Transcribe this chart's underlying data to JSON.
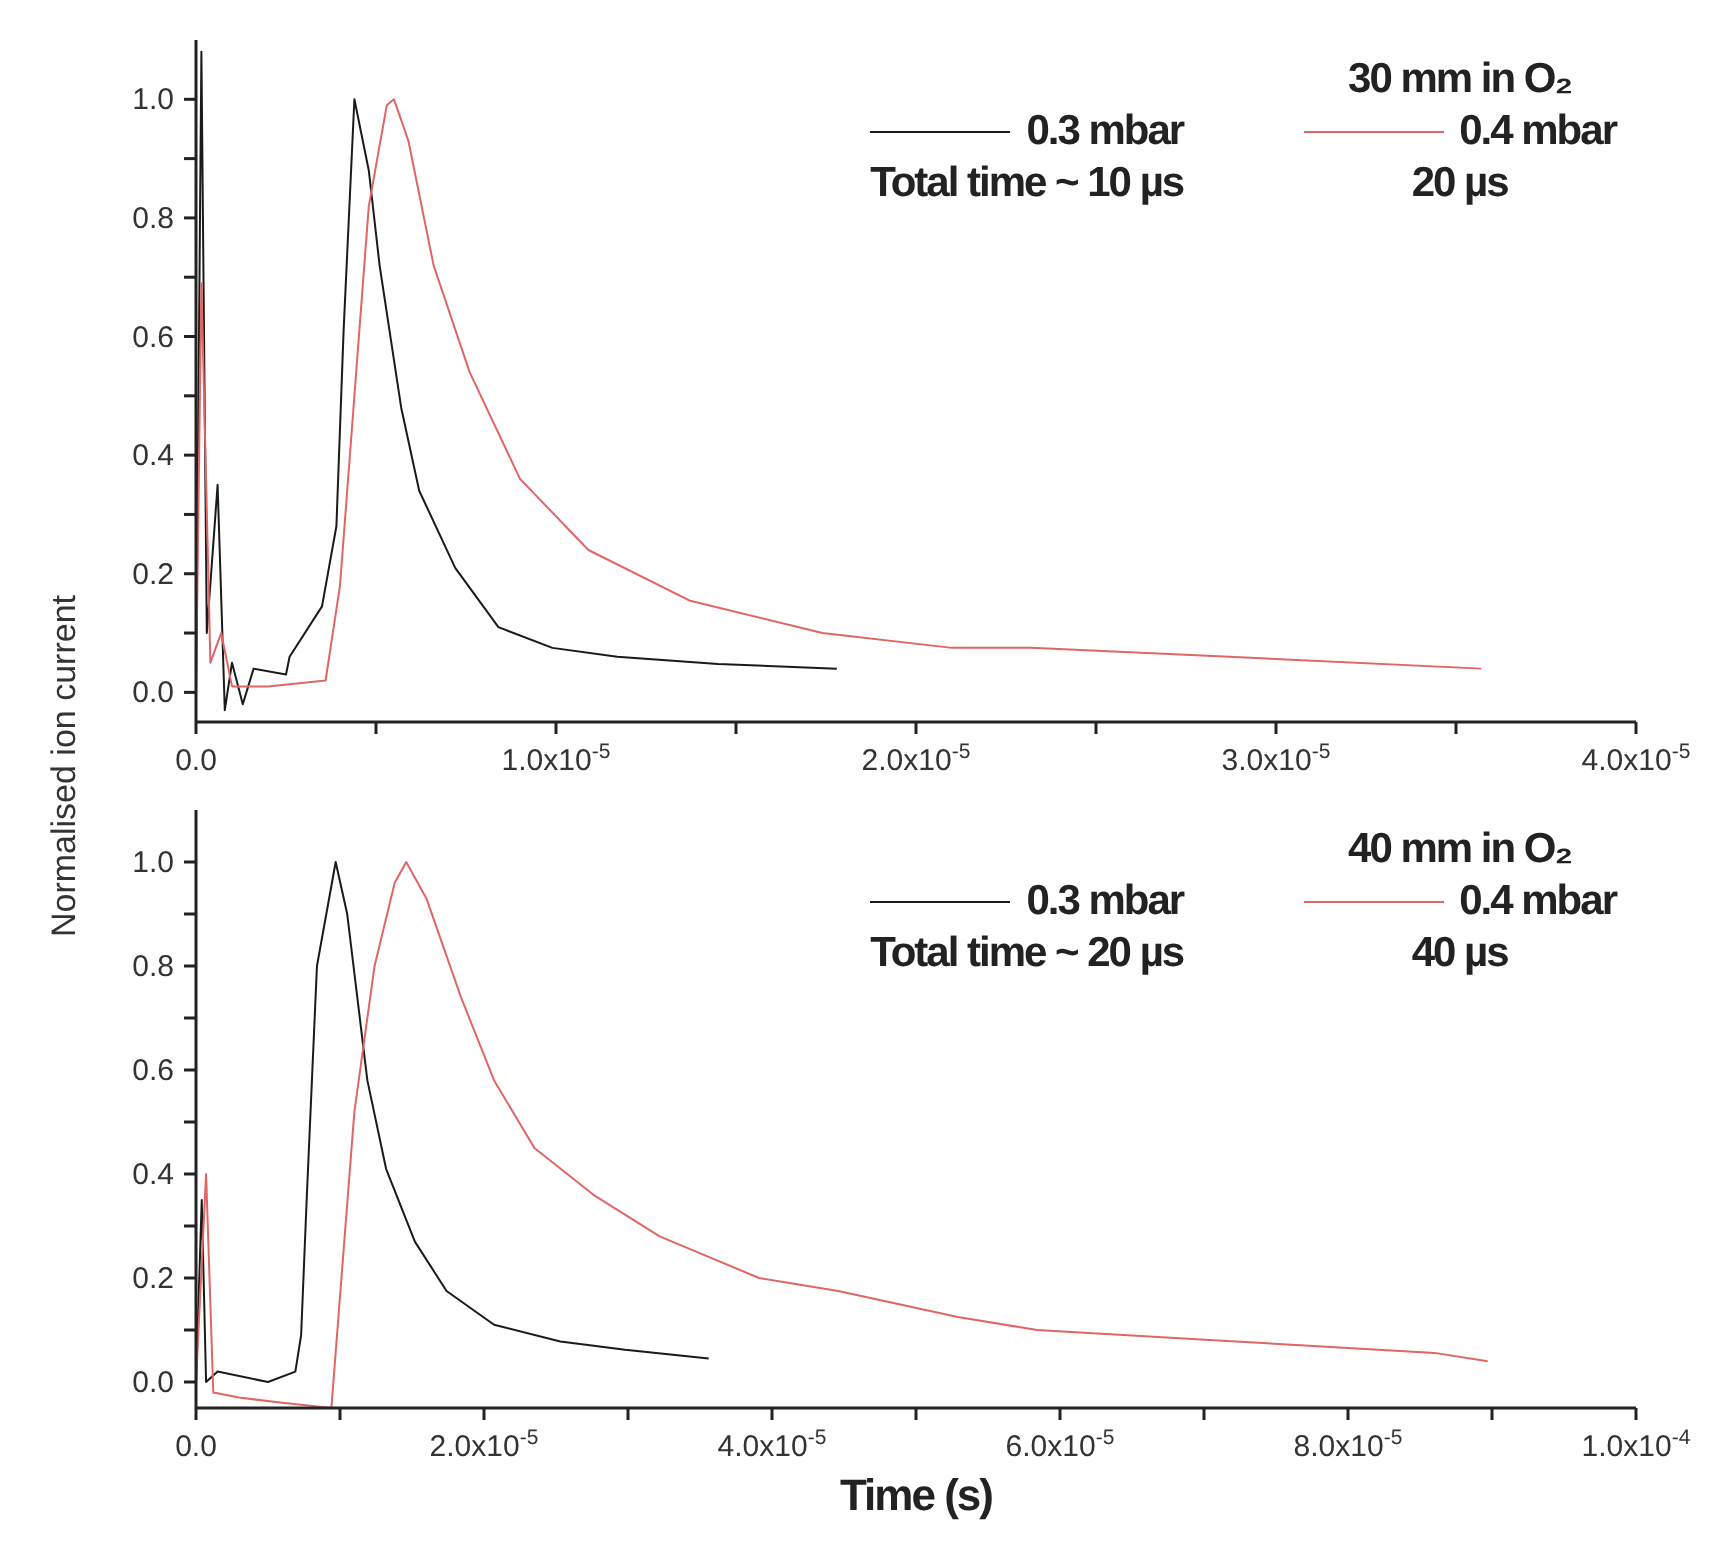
{
  "chart_data": [
    {
      "type": "line",
      "annotations": [
        "30 mm in O₂",
        "Total time ~ 10 µs",
        "20 µs"
      ],
      "legend": "top right",
      "xlim": [
        0,
        4e-05
      ],
      "xticks": [
        {
          "value": 0,
          "label": "0.0"
        },
        {
          "value": 5e-06,
          "label": null
        },
        {
          "value": 1e-05,
          "label": "1.0x10$^{-5}$"
        },
        {
          "value": 1.5e-05,
          "label": null
        },
        {
          "value": 2e-05,
          "label": "2.0x10$^{-5}$"
        },
        {
          "value": 2.5e-05,
          "label": null
        },
        {
          "value": 3e-05,
          "label": "3.0x10$^{-5}$"
        },
        {
          "value": 3.5e-05,
          "label": null
        },
        {
          "value": 4e-05,
          "label": "4.0x10$^{-5}$"
        }
      ],
      "ylim": [
        -0.05,
        1.1
      ],
      "yticks": [
        {
          "value": 0,
          "label": "0.0"
        },
        {
          "value": 0.1,
          "label": null
        },
        0.2,
        {
          "value": 0.3,
          "label": null
        },
        0.4,
        {
          "value": 0.5,
          "label": null
        },
        0.6,
        {
          "value": 0.7,
          "label": null
        },
        0.8,
        {
          "value": 0.9,
          "label": null
        },
        {
          "value": 1,
          "label": "1.0"
        }
      ],
      "series": [
        {
          "name": "0.3 mbar",
          "color": "#1a1a1a",
          "x": [
            0,
            1.5e-07,
            3e-07,
            6e-07,
            8e-07,
            1e-06,
            1.3e-06,
            1.6e-06,
            2.5e-06,
            2.6e-06,
            3.5e-06,
            3.9e-06,
            4.1e-06,
            4.4e-06,
            4.8e-06,
            5.1e-06,
            5.7e-06,
            6.2e-06,
            7.2e-06,
            8.4e-06,
            9.9e-06,
            1.17e-05,
            1.45e-05,
            1.78e-05
          ],
          "values": [
            0,
            1.08,
            0.1,
            0.35,
            -0.03,
            0.05,
            -0.02,
            0.04,
            0.03,
            0.06,
            0.145,
            0.28,
            0.61,
            1.0,
            0.88,
            0.72,
            0.48,
            0.34,
            0.21,
            0.11,
            0.075,
            0.06,
            0.048,
            0.04
          ]
        },
        {
          "name": "0.4 mbar",
          "color": "#e06666",
          "x": [
            0,
            1.5e-07,
            4e-07,
            7e-07,
            1e-06,
            2e-06,
            3.6e-06,
            4e-06,
            4.4e-06,
            4.8e-06,
            5.3e-06,
            5.5e-06,
            5.9e-06,
            6.6e-06,
            7.6e-06,
            9e-06,
            1.09e-05,
            1.37e-05,
            1.74e-05,
            2.1e-05,
            2.32e-05,
            2.87e-05,
            3.57e-05
          ],
          "values": [
            0,
            0.69,
            0.05,
            0.1,
            0.01,
            0.01,
            0.02,
            0.18,
            0.5,
            0.82,
            0.99,
            1.0,
            0.93,
            0.72,
            0.54,
            0.36,
            0.24,
            0.155,
            0.1,
            0.075,
            0.075,
            0.06,
            0.04
          ]
        }
      ]
    },
    {
      "type": "line",
      "annotations": [
        "40 mm in O₂",
        "Total time ~ 20 µs",
        "40 µs"
      ],
      "legend": "top right",
      "xlabel": "Time (s)",
      "ylabel": "Normalised ion current",
      "xlim": [
        0,
        0.0001
      ],
      "xticks": [
        {
          "value": 0,
          "label": "0.0"
        },
        {
          "value": 1e-05,
          "label": null
        },
        {
          "value": 2e-05,
          "label": "2.0x10$^{-5}$"
        },
        {
          "value": 3e-05,
          "label": null
        },
        {
          "value": 4e-05,
          "label": "4.0x10$^{-5}$"
        },
        {
          "value": 5e-05,
          "label": null
        },
        {
          "value": 6e-05,
          "label": "6.0x10$^{-5}$"
        },
        {
          "value": 7e-05,
          "label": null
        },
        {
          "value": 8e-05,
          "label": "8.0x10$^{-5}$"
        },
        {
          "value": 9e-05,
          "label": null
        },
        {
          "value": 0.0001,
          "label": "1.0x10$^{-4}$"
        }
      ],
      "ylim": [
        -0.05,
        1.1
      ],
      "yticks": [
        {
          "value": 0,
          "label": "0.0"
        },
        {
          "value": 0.1,
          "label": null
        },
        0.2,
        {
          "value": 0.3,
          "label": null
        },
        0.4,
        {
          "value": 0.5,
          "label": null
        },
        0.6,
        {
          "value": 0.7,
          "label": null
        },
        0.8,
        {
          "value": 0.9,
          "label": null
        },
        {
          "value": 1,
          "label": "1.0"
        }
      ],
      "series": [
        {
          "name": "0.3 mbar",
          "color": "#1a1a1a",
          "x": [
            0,
            4e-07,
            7e-07,
            1.5e-06,
            5e-06,
            6.9e-06,
            7.3e-06,
            7.7e-06,
            8.4e-06,
            9.7e-06,
            1.05e-05,
            1.19e-05,
            1.32e-05,
            1.52e-05,
            1.74e-05,
            2.07e-05,
            2.53e-05,
            2.98e-05,
            3.56e-05
          ],
          "values": [
            0,
            0.35,
            0,
            0.02,
            0,
            0.02,
            0.09,
            0.36,
            0.8,
            1.0,
            0.9,
            0.58,
            0.41,
            0.27,
            0.175,
            0.11,
            0.078,
            0.062,
            0.045
          ]
        },
        {
          "name": "0.4 mbar",
          "color": "#e06666",
          "x": [
            0,
            7e-07,
            1.2e-06,
            3e-06,
            6e-06,
            9.4e-06,
            1.01e-05,
            1.1e-05,
            1.24e-05,
            1.38e-05,
            1.46e-05,
            1.6e-05,
            1.84e-05,
            2.07e-05,
            2.35e-05,
            2.76e-05,
            3.22e-05,
            3.91e-05,
            4.46e-05,
            5.29e-05,
            5.84e-05,
            7.22e-05,
            8.6e-05,
            8.97e-05
          ],
          "values": [
            0,
            0.4,
            -0.02,
            -0.03,
            -0.04,
            -0.05,
            0.2,
            0.52,
            0.8,
            0.96,
            1.0,
            0.93,
            0.74,
            0.58,
            0.45,
            0.36,
            0.28,
            0.2,
            0.175,
            0.125,
            0.1,
            0.078,
            0.056,
            0.04
          ]
        }
      ]
    }
  ]
}
